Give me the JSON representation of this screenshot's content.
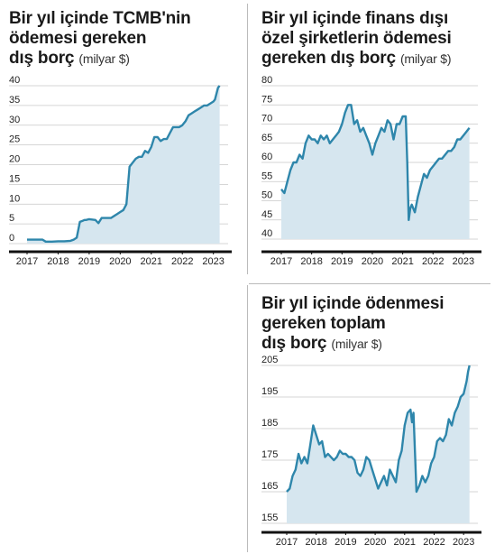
{
  "chart_data": [
    {
      "type": "area",
      "title": "Bir yıl içinde TCMB'nin ödemesi gereken dış borç",
      "title_lines": [
        "Bir yıl içinde TCMB'nin",
        "ödemesi gereken"
      ],
      "title_last_line": "dış borç",
      "unit": "(milyar $)",
      "xlabel": "",
      "ylabel": "",
      "x_ticks": [
        "2017",
        "2018",
        "2019",
        "2020",
        "2021",
        "2022",
        "2023"
      ],
      "y_ticks": [
        0,
        5,
        10,
        15,
        20,
        25,
        30,
        35,
        40
      ],
      "ylim": [
        0,
        40
      ],
      "xlim": [
        2017.0,
        2023.3
      ],
      "grid": true,
      "color": "#2e86ab",
      "fill": "#d6e6ef",
      "x": [
        2017.0,
        2017.1,
        2017.3,
        2017.5,
        2017.6,
        2017.8,
        2018.0,
        2018.2,
        2018.4,
        2018.5,
        2018.6,
        2018.7,
        2018.8,
        2018.85,
        2018.9,
        2019.0,
        2019.2,
        2019.3,
        2019.4,
        2019.5,
        2019.7,
        2019.9,
        2020.0,
        2020.1,
        2020.2,
        2020.3,
        2020.35,
        2020.4,
        2020.5,
        2020.6,
        2020.7,
        2020.8,
        2020.9,
        2021.0,
        2021.1,
        2021.2,
        2021.3,
        2021.4,
        2021.5,
        2021.6,
        2021.7,
        2021.8,
        2021.9,
        2022.0,
        2022.1,
        2022.2,
        2022.3,
        2022.4,
        2022.5,
        2022.6,
        2022.7,
        2022.8,
        2022.9,
        2023.0,
        2023.05,
        2023.1,
        2023.15,
        2023.2
      ],
      "y": [
        1.0,
        1.0,
        1.0,
        1.0,
        0.5,
        0.5,
        0.6,
        0.6,
        0.7,
        1.0,
        1.5,
        5.5,
        5.8,
        6.0,
        6.0,
        6.2,
        6.0,
        5.2,
        6.5,
        6.5,
        6.5,
        7.5,
        8.0,
        8.5,
        10.0,
        19.5,
        20.0,
        20.5,
        21.5,
        22.0,
        22.0,
        23.5,
        23.0,
        24.5,
        27.0,
        27.0,
        26.0,
        26.5,
        26.5,
        28.0,
        29.5,
        29.5,
        29.5,
        30.0,
        31.0,
        32.5,
        33.0,
        33.5,
        34.0,
        34.5,
        35.0,
        35.0,
        35.5,
        36.0,
        36.5,
        38.0,
        39.5,
        40.0
      ]
    },
    {
      "type": "area",
      "title": "Bir yıl içinde finans dışı özel şirketlerin ödemesi gereken dış borç",
      "title_lines": [
        "Bir yıl içinde finans dışı",
        "özel şirketlerin ödemesi"
      ],
      "title_last_line": "gereken dış borç",
      "unit": "(milyar $)",
      "xlabel": "",
      "ylabel": "",
      "x_ticks": [
        "2017",
        "2018",
        "2019",
        "2020",
        "2021",
        "2022",
        "2023"
      ],
      "y_ticks": [
        40,
        45,
        50,
        55,
        60,
        65,
        70,
        75,
        80
      ],
      "ylim": [
        40,
        80
      ],
      "xlim": [
        2017.0,
        2023.3
      ],
      "grid": true,
      "color": "#2e86ab",
      "fill": "#d6e6ef",
      "x": [
        2017.0,
        2017.1,
        2017.2,
        2017.3,
        2017.4,
        2017.5,
        2017.6,
        2017.7,
        2017.8,
        2017.9,
        2018.0,
        2018.1,
        2018.2,
        2018.3,
        2018.4,
        2018.5,
        2018.6,
        2018.7,
        2018.8,
        2018.9,
        2019.0,
        2019.1,
        2019.2,
        2019.3,
        2019.4,
        2019.5,
        2019.6,
        2019.7,
        2019.8,
        2019.9,
        2020.0,
        2020.1,
        2020.2,
        2020.3,
        2020.4,
        2020.5,
        2020.6,
        2020.7,
        2020.8,
        2020.9,
        2021.0,
        2021.1,
        2021.15,
        2021.2,
        2021.25,
        2021.3,
        2021.4,
        2021.5,
        2021.6,
        2021.7,
        2021.8,
        2021.9,
        2022.0,
        2022.1,
        2022.2,
        2022.3,
        2022.4,
        2022.5,
        2022.6,
        2022.7,
        2022.8,
        2022.9,
        2023.0,
        2023.1,
        2023.2
      ],
      "y": [
        53,
        52,
        55,
        58,
        60,
        60,
        62,
        61,
        65,
        67,
        66,
        66,
        65,
        67,
        66,
        67,
        65,
        66,
        67,
        68,
        70,
        73,
        75,
        75,
        70,
        71,
        68,
        69,
        67,
        65,
        62,
        65,
        67,
        69,
        68,
        71,
        70,
        66,
        70,
        70,
        72,
        72,
        60,
        45,
        48,
        49,
        47,
        51,
        54,
        57,
        56,
        58,
        59,
        60,
        61,
        61,
        62,
        63,
        63,
        64,
        66,
        66,
        67,
        68,
        69
      ]
    },
    {
      "type": "area",
      "title": "Bir yıl içinde ödenmesi gereken toplam dış borç",
      "title_lines": [
        "Bir yıl içinde ödenmesi",
        "gereken toplam"
      ],
      "title_last_line": "dış borç",
      "unit": "(milyar $)",
      "xlabel": "",
      "ylabel": "",
      "x_ticks": [
        "2017",
        "2018",
        "2019",
        "2020",
        "2021",
        "2022",
        "2023"
      ],
      "y_ticks": [
        155,
        165,
        175,
        185,
        195,
        205
      ],
      "ylim": [
        155,
        205
      ],
      "xlim": [
        2017.0,
        2023.3
      ],
      "grid": true,
      "color": "#2e86ab",
      "fill": "#d6e6ef",
      "x": [
        2017.0,
        2017.1,
        2017.2,
        2017.3,
        2017.4,
        2017.5,
        2017.6,
        2017.7,
        2017.8,
        2017.9,
        2018.0,
        2018.1,
        2018.2,
        2018.3,
        2018.4,
        2018.5,
        2018.6,
        2018.7,
        2018.8,
        2018.9,
        2019.0,
        2019.1,
        2019.2,
        2019.3,
        2019.4,
        2019.5,
        2019.6,
        2019.7,
        2019.8,
        2019.9,
        2020.0,
        2020.1,
        2020.2,
        2020.3,
        2020.4,
        2020.5,
        2020.6,
        2020.7,
        2020.8,
        2020.9,
        2021.0,
        2021.1,
        2021.2,
        2021.25,
        2021.3,
        2021.4,
        2021.5,
        2021.6,
        2021.7,
        2021.8,
        2021.9,
        2022.0,
        2022.1,
        2022.2,
        2022.3,
        2022.4,
        2022.5,
        2022.6,
        2022.7,
        2022.8,
        2022.9,
        2023.0,
        2023.1,
        2023.15,
        2023.2
      ],
      "y": [
        165,
        166,
        170,
        172,
        177,
        174,
        176,
        174,
        180,
        186,
        183,
        180,
        181,
        176,
        177,
        176,
        175,
        176,
        178,
        177,
        177,
        176,
        176,
        175,
        171,
        170,
        172,
        176,
        175,
        172,
        169,
        166,
        168,
        170,
        167,
        172,
        170,
        168,
        175,
        178,
        186,
        190,
        191,
        187,
        190,
        165,
        167,
        170,
        168,
        170,
        174,
        176,
        181,
        182,
        181,
        183,
        188,
        186,
        190,
        192,
        195,
        196,
        200,
        203,
        205
      ]
    }
  ]
}
